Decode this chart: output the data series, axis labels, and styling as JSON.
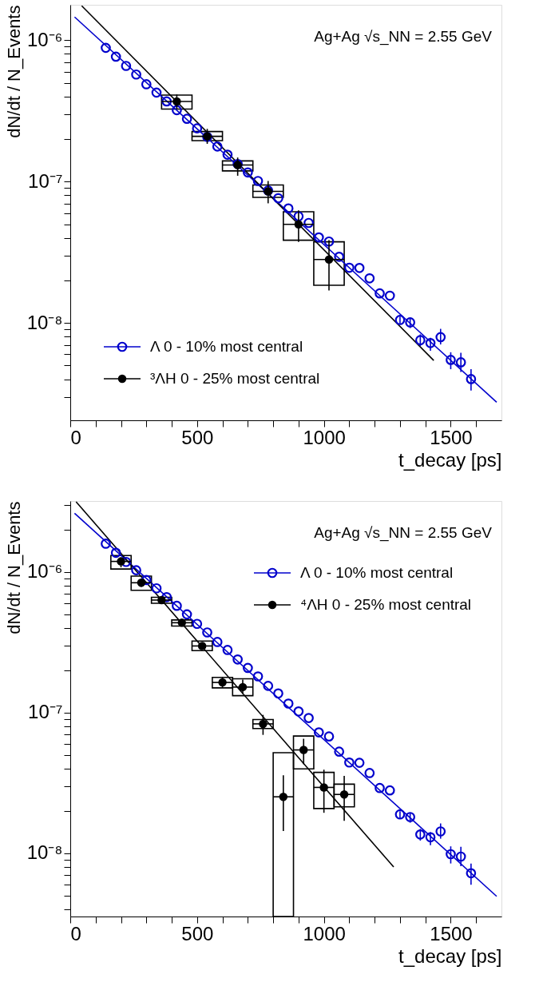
{
  "chart_data": [
    {
      "type": "scatter",
      "xlabel": "t_decay [ps]",
      "ylabel": "dN/dt / N_Events",
      "log": "y",
      "grid": false,
      "legend": "bottom left",
      "annotations": [
        "Ag+Ag √s_NN = 2.55 GeV"
      ],
      "xlim": [
        0,
        1700
      ],
      "ylim": [
        2.05e-09,
        1.78e-06
      ],
      "xticks": [
        0,
        {
          "value": 100,
          "label": null
        },
        {
          "value": 200,
          "label": null
        },
        {
          "value": 300,
          "label": null
        },
        {
          "value": 400,
          "label": null
        },
        500,
        {
          "value": 600,
          "label": null
        },
        {
          "value": 700,
          "label": null
        },
        {
          "value": 800,
          "label": null
        },
        {
          "value": 900,
          "label": null
        },
        1000,
        {
          "value": 1100,
          "label": null
        },
        {
          "value": 1200,
          "label": null
        },
        {
          "value": 1300,
          "label": null
        },
        {
          "value": 1400,
          "label": null
        },
        1500,
        {
          "value": 1600,
          "label": null
        }
      ],
      "yticks": [
        {
          "value": 3e-09,
          "label": null
        },
        {
          "value": 4e-09,
          "label": null
        },
        {
          "value": 5e-09,
          "label": null
        },
        {
          "value": 6e-09,
          "label": null
        },
        {
          "value": 7e-09,
          "label": null
        },
        {
          "value": 8e-09,
          "label": null
        },
        {
          "value": 9e-09,
          "label": null
        },
        {
          "value": 1e-08,
          "label": "10⁻⁸"
        },
        {
          "value": 2e-08,
          "label": null
        },
        {
          "value": 3e-08,
          "label": null
        },
        {
          "value": 4e-08,
          "label": null
        },
        {
          "value": 5e-08,
          "label": null
        },
        {
          "value": 6e-08,
          "label": null
        },
        {
          "value": 7e-08,
          "label": null
        },
        {
          "value": 8e-08,
          "label": null
        },
        {
          "value": 9e-08,
          "label": null
        },
        {
          "value": 1e-07,
          "label": "10⁻⁷"
        },
        {
          "value": 2e-07,
          "label": null
        },
        {
          "value": 3e-07,
          "label": null
        },
        {
          "value": 4e-07,
          "label": null
        },
        {
          "value": 5e-07,
          "label": null
        },
        {
          "value": 6e-07,
          "label": null
        },
        {
          "value": 7e-07,
          "label": null
        },
        {
          "value": 8e-07,
          "label": null
        },
        {
          "value": 9e-07,
          "label": null
        },
        {
          "value": 1e-06,
          "label": "10⁻⁶"
        }
      ],
      "series": [
        {
          "name": "Λ   0 - 10% most central",
          "marker": "circle",
          "color": "#0000cc",
          "x": [
            140,
            180,
            220,
            260,
            300,
            340,
            380,
            420,
            460,
            500,
            540,
            580,
            620,
            660,
            700,
            740,
            780,
            820,
            860,
            900,
            940,
            980,
            1020,
            1060,
            1100,
            1140,
            1180,
            1220,
            1260,
            1300,
            1340,
            1380,
            1420,
            1460,
            1500,
            1540,
            1580
          ],
          "values": [
            8.83e-07,
            7.65e-07,
            6.58e-07,
            5.72e-07,
            4.88e-07,
            4.26e-07,
            3.69e-07,
            3.2e-07,
            2.78e-07,
            2.38e-07,
            2.07e-07,
            1.77e-07,
            1.55e-07,
            1.33e-07,
            1.16e-07,
            1.01e-07,
            8.65e-08,
            7.63e-08,
            6.46e-08,
            5.68e-08,
            5.1e-08,
            4.03e-08,
            3.77e-08,
            2.94e-08,
            2.46e-08,
            2.45e-08,
            2.07e-08,
            1.62e-08,
            1.56e-08,
            1.05e-08,
            1.01e-08,
            7.56e-09,
            7.21e-09,
            7.94e-09,
            5.48e-09,
            5.27e-09,
            4.01e-09
          ],
          "errors": [
            null,
            null,
            null,
            null,
            null,
            null,
            null,
            null,
            null,
            null,
            null,
            null,
            null,
            null,
            null,
            null,
            null,
            null,
            null,
            null,
            null,
            null,
            null,
            null,
            null,
            null,
            null,
            null,
            null,
            [
              9.93e-09,
              1.11e-08
            ],
            [
              9.2e-09,
              1.07e-08
            ],
            [
              6.86e-09,
              8.31e-09
            ],
            [
              6.35e-09,
              7.85e-09
            ],
            [
              7.05e-09,
              9.09e-09
            ],
            [
              4.71e-09,
              6.21e-09
            ],
            [
              4.51e-09,
              6.16e-09
            ],
            [
              3.33e-09,
              4.71e-09
            ]
          ]
        },
        {
          "name": "³ΛH   0 - 25% most central",
          "marker": "circle",
          "color": "#000000",
          "x": [
            420,
            540,
            660,
            780,
            900,
            1020
          ],
          "values": [
            3.69e-07,
            2.09e-07,
            1.31e-07,
            8.53e-08,
            4.99e-08,
            2.81e-08
          ],
          "errors": [
            [
              3.26e-07,
              4.13e-07
            ],
            [
              1.85e-07,
              2.36e-07
            ],
            [
              1.1e-07,
              1.48e-07
            ],
            [
              7.02e-08,
              1.01e-07
            ],
            [
              3.75e-08,
              6.27e-08
            ],
            [
              1.7e-08,
              3.85e-08
            ]
          ],
          "xerrors": [
            60,
            60,
            60,
            60,
            60,
            60
          ]
        },
        {
          "type": "bar",
          "color": "#000000",
          "x": [
            420,
            540,
            660,
            780,
            900,
            1020
          ],
          "base": [
            3.26e-07,
            1.95e-07,
            1.19e-07,
            7.73e-08,
            3.85e-08,
            1.85e-08
          ],
          "values": [
            8.3e-08,
            3.1e-08,
            2.1e-08,
            1.73e-08,
            2.27e-08,
            1.9e-08
          ]
        },
        {
          "type": "line",
          "color": "#0000cc",
          "x": [
            17,
            1681
          ],
          "values": [
            1.46e-06,
            2.75e-09
          ]
        },
        {
          "type": "line",
          "color": "#000000",
          "x": [
            45,
            1433
          ],
          "values": [
            1.75e-06,
            5.43e-09
          ]
        }
      ]
    },
    {
      "type": "scatter",
      "xlabel": "t_decay [ps]",
      "ylabel": "dN/dt / N_Events",
      "log": "y",
      "grid": false,
      "legend": "top right",
      "annotations": [
        "Ag+Ag √s_NN = 2.55 GeV"
      ],
      "xlim": [
        0,
        1700
      ],
      "ylim": [
        3.55e-09,
        3.2e-06
      ],
      "xticks": [
        0,
        {
          "value": 100,
          "label": null
        },
        {
          "value": 200,
          "label": null
        },
        {
          "value": 300,
          "label": null
        },
        {
          "value": 400,
          "label": null
        },
        500,
        {
          "value": 600,
          "label": null
        },
        {
          "value": 700,
          "label": null
        },
        {
          "value": 800,
          "label": null
        },
        {
          "value": 900,
          "label": null
        },
        1000,
        {
          "value": 1100,
          "label": null
        },
        {
          "value": 1200,
          "label": null
        },
        {
          "value": 1300,
          "label": null
        },
        {
          "value": 1400,
          "label": null
        },
        1500,
        {
          "value": 1600,
          "label": null
        }
      ],
      "yticks": [
        {
          "value": 4e-09,
          "label": null
        },
        {
          "value": 5e-09,
          "label": null
        },
        {
          "value": 6e-09,
          "label": null
        },
        {
          "value": 7e-09,
          "label": null
        },
        {
          "value": 8e-09,
          "label": null
        },
        {
          "value": 9e-09,
          "label": null
        },
        {
          "value": 1e-08,
          "label": "10⁻⁸"
        },
        {
          "value": 2e-08,
          "label": null
        },
        {
          "value": 3e-08,
          "label": null
        },
        {
          "value": 4e-08,
          "label": null
        },
        {
          "value": 5e-08,
          "label": null
        },
        {
          "value": 6e-08,
          "label": null
        },
        {
          "value": 7e-08,
          "label": null
        },
        {
          "value": 8e-08,
          "label": null
        },
        {
          "value": 9e-08,
          "label": null
        },
        {
          "value": 1e-07,
          "label": "10⁻⁷"
        },
        {
          "value": 2e-07,
          "label": null
        },
        {
          "value": 3e-07,
          "label": null
        },
        {
          "value": 4e-07,
          "label": null
        },
        {
          "value": 5e-07,
          "label": null
        },
        {
          "value": 6e-07,
          "label": null
        },
        {
          "value": 7e-07,
          "label": null
        },
        {
          "value": 8e-07,
          "label": null
        },
        {
          "value": 9e-07,
          "label": null
        },
        {
          "value": 1e-06,
          "label": "10⁻⁶"
        },
        {
          "value": 2e-06,
          "label": null
        },
        {
          "value": 3e-06,
          "label": null
        }
      ],
      "series": [
        {
          "name": "Λ   0 - 10% most central",
          "marker": "circle",
          "color": "#0000cc",
          "x": [
            140,
            180,
            220,
            260,
            300,
            340,
            380,
            420,
            460,
            500,
            540,
            580,
            620,
            660,
            700,
            740,
            780,
            820,
            860,
            900,
            940,
            980,
            1020,
            1060,
            1100,
            1140,
            1180,
            1220,
            1260,
            1300,
            1340,
            1380,
            1420,
            1460,
            1500,
            1540,
            1580
          ],
          "values": [
            1.59e-06,
            1.37e-06,
            1.18e-06,
            1.03e-06,
            8.77e-07,
            7.66e-07,
            6.63e-07,
            5.75e-07,
            5e-07,
            4.28e-07,
            3.72e-07,
            3.18e-07,
            2.79e-07,
            2.39e-07,
            2.08e-07,
            1.81e-07,
            1.55e-07,
            1.37e-07,
            1.16e-07,
            1.02e-07,
            9.16e-08,
            7.24e-08,
            6.77e-08,
            5.28e-08,
            4.42e-08,
            4.4e-08,
            3.72e-08,
            2.91e-08,
            2.8e-08,
            1.89e-08,
            1.81e-08,
            1.36e-08,
            1.3e-08,
            1.43e-08,
            9.85e-09,
            9.47e-09,
            7.21e-09
          ],
          "errors": [
            null,
            null,
            null,
            null,
            null,
            null,
            null,
            null,
            null,
            null,
            null,
            null,
            null,
            null,
            null,
            null,
            null,
            null,
            null,
            null,
            null,
            null,
            null,
            null,
            null,
            null,
            null,
            null,
            null,
            [
              1.78e-08,
              1.99e-08
            ],
            [
              1.65e-08,
              1.92e-08
            ],
            [
              1.23e-08,
              1.49e-08
            ],
            [
              1.14e-08,
              1.41e-08
            ],
            [
              1.27e-08,
              1.63e-08
            ],
            [
              8.46e-09,
              1.12e-08
            ],
            [
              8.1e-09,
              1.11e-08
            ],
            [
              5.98e-09,
              8.46e-09
            ]
          ]
        },
        {
          "name": "⁴ΛH   0 - 25% most central",
          "marker": "circle",
          "color": "#000000",
          "x": [
            200,
            280,
            360,
            440,
            520,
            600,
            680,
            760,
            840,
            920,
            1000,
            1080
          ],
          "values": [
            1.19e-06,
            8.39e-07,
            6.32e-07,
            4.36e-07,
            2.98e-07,
            1.64e-07,
            1.52e-07,
            8.32e-08,
            2.52e-08,
            5.43e-08,
            2.94e-08,
            2.62e-08
          ],
          "errors": [
            [
              1.08e-06,
              1.27e-06
            ],
            [
              7.85e-07,
              8.85e-07
            ],
            null,
            null,
            null,
            [
              1.5e-07,
              1.8e-07
            ],
            [
              1.36e-07,
              1.72e-07
            ],
            [
              6.95e-08,
              9.64e-08
            ],
            [
              1.44e-08,
              3.59e-08
            ],
            [
              4.3e-08,
              6.52e-08
            ],
            [
              1.94e-08,
              3.93e-08
            ],
            [
              1.7e-08,
              3.55e-08
            ]
          ],
          "xerrors": [
            40,
            40,
            40,
            40,
            40,
            40,
            40,
            40,
            40,
            40,
            40,
            40
          ]
        },
        {
          "type": "bar",
          "color": "#000000",
          "x": [
            200,
            280,
            360,
            440,
            520,
            600,
            680,
            760,
            840,
            920,
            1000,
            1080
          ],
          "base": [
            1.05e-06,
            7.41e-07,
            6e-07,
            4.13e-07,
            2.76e-07,
            1.5e-07,
            1.32e-07,
            7.71e-08,
            3.55e-09,
            3.98e-08,
            2.08e-08,
            2.14e-08
          ],
          "values": [
            2.6e-07,
            1.94e-07,
            6.1e-08,
            4.3e-08,
            4.7e-08,
            2.8e-08,
            4.2e-08,
            1.22e-08,
            4.835e-08,
            2.84e-08,
            1.68e-08,
            9.6e-09
          ]
        },
        {
          "type": "line",
          "color": "#0000cc",
          "x": [
            17,
            1681
          ],
          "values": [
            2.62e-06,
            4.94e-09
          ]
        },
        {
          "type": "line",
          "color": "#000000",
          "x": [
            23,
            1275
          ],
          "values": [
            3.16e-06,
            7.98e-09
          ]
        }
      ]
    }
  ]
}
